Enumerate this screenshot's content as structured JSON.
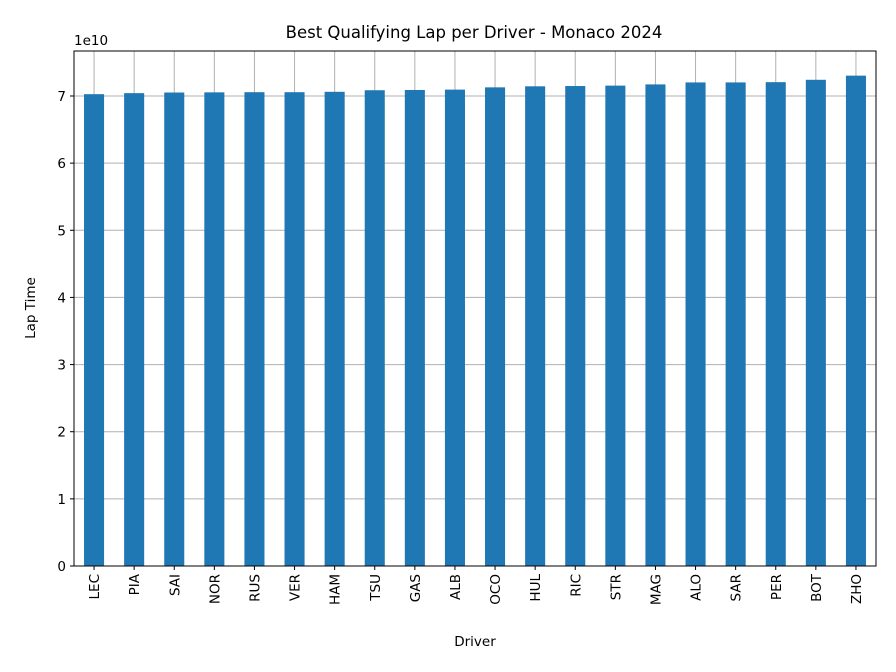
{
  "chart_data": {
    "type": "bar",
    "title": "Best Qualifying Lap per Driver - Monaco 2024",
    "xlabel": "Driver",
    "ylabel": "Lap Time",
    "offset_text": "1e10",
    "scale": 10000000000,
    "categories": [
      "LEC",
      "PIA",
      "SAI",
      "NOR",
      "RUS",
      "VER",
      "HAM",
      "TSU",
      "GAS",
      "ALB",
      "OCO",
      "HUL",
      "RIC",
      "STR",
      "MAG",
      "ALO",
      "SAR",
      "PER",
      "BOT",
      "ZHO"
    ],
    "values": [
      70270000000,
      70424000000,
      70518000000,
      70542000000,
      70567000000,
      70567000000,
      70621000000,
      70858000000,
      70896000000,
      70948000000,
      71285000000,
      71440000000,
      71482000000,
      71543000000,
      71725000000,
      72019000000,
      72020000000,
      72060000000,
      72412000000,
      73028000000
    ],
    "ylim": [
      0,
      76700000000
    ],
    "yticks": [
      0,
      10000000000,
      20000000000,
      30000000000,
      40000000000,
      50000000000,
      60000000000,
      70000000000
    ],
    "ytick_labels": [
      "0",
      "1",
      "2",
      "3",
      "4",
      "5",
      "6",
      "7"
    ],
    "grid": true,
    "bar_color": "#1f77b4",
    "grid_color": "#b0b0b0"
  }
}
